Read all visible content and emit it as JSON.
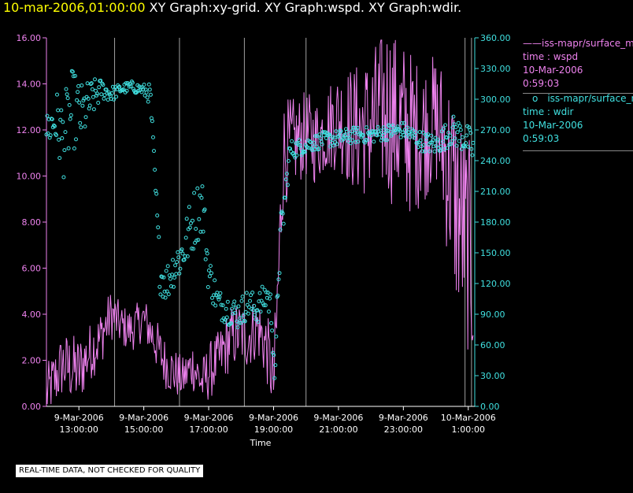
{
  "header": {
    "timestamp": "10-mar-2006,01:00:00",
    "titles": " XY Graph:xy-grid.  XY Graph:wspd.  XY Graph:wdir."
  },
  "legend": {
    "series1": {
      "name": "iss-mapr/surface_m",
      "field": "time : wspd",
      "date": "10-Mar-2006",
      "time": "0:59:03",
      "color": "#ee82ee"
    },
    "series2": {
      "name": "iss-mapr/surface_m",
      "field": "time : wdir",
      "date": "10-Mar-2006",
      "time": "0:59:03",
      "color": "#40e0e0"
    }
  },
  "footer": {
    "text": "REAL-TIME DATA, NOT CHECKED FOR QUALITY"
  },
  "chart_data": {
    "type": "line+scatter",
    "title": "XY Graph",
    "xlabel": "Time",
    "x_ticks": [
      {
        "date": "9-Mar-2006",
        "time": "13:00:00",
        "hour": 13
      },
      {
        "date": "9-Mar-2006",
        "time": "15:00:00",
        "hour": 15
      },
      {
        "date": "9-Mar-2006",
        "time": "17:00:00",
        "hour": 17
      },
      {
        "date": "9-Mar-2006",
        "time": "19:00:00",
        "hour": 19
      },
      {
        "date": "9-Mar-2006",
        "time": "21:00:00",
        "hour": 21
      },
      {
        "date": "9-Mar-2006",
        "time": "23:00:00",
        "hour": 23
      },
      {
        "date": "10-Mar-2006",
        "time": "1:00:00",
        "hour": 25
      }
    ],
    "xlim": [
      12.0,
      25.2
    ],
    "grid_x_hours": [
      12.0,
      14.1,
      16.1,
      18.1,
      20.0,
      24.9,
      25.1
    ],
    "y_left": {
      "label": "wspd",
      "ylim": [
        0,
        16
      ],
      "ticks": [
        "0.00",
        "2.00",
        "4.00",
        "6.00",
        "8.00",
        "10.00",
        "12.00",
        "14.00",
        "16.00"
      ],
      "color": "#ee82ee"
    },
    "y_right": {
      "label": "wdir",
      "ylim": [
        0,
        360
      ],
      "ticks": [
        "0.00",
        "30.00",
        "60.00",
        "90.00",
        "120.00",
        "150.00",
        "180.00",
        "210.00",
        "240.00",
        "270.00",
        "300.00",
        "330.00",
        "360.00"
      ],
      "color": "#40e0e0"
    },
    "series": [
      {
        "name": "wspd",
        "type": "line",
        "axis": "left",
        "x": [
          12.0,
          12.5,
          13.0,
          13.3,
          13.6,
          14.0,
          14.3,
          14.6,
          15.0,
          15.3,
          15.6,
          15.9,
          16.2,
          16.5,
          16.8,
          17.0,
          17.3,
          17.6,
          17.9,
          18.2,
          18.5,
          18.8,
          19.0,
          19.05,
          19.3,
          19.7,
          20.0,
          20.3,
          20.6,
          21.0,
          21.5,
          22.0,
          22.5,
          23.0,
          23.5,
          24.0,
          24.3,
          24.6,
          24.8,
          25.0,
          25.15
        ],
        "y": [
          0.5,
          1.8,
          1.5,
          2.3,
          2.8,
          4.0,
          3.5,
          3.3,
          3.8,
          3.0,
          2.0,
          1.5,
          1.2,
          1.8,
          1.0,
          1.5,
          2.0,
          2.8,
          3.2,
          3.0,
          3.5,
          2.5,
          1.0,
          2.0,
          11.0,
          11.5,
          11.8,
          11.5,
          12.0,
          12.5,
          12.0,
          12.2,
          13.0,
          12.0,
          11.8,
          12.5,
          11.0,
          9.0,
          8.0,
          7.0,
          6.0
        ],
        "amp": [
          0.8,
          0.9,
          1.0,
          0.8,
          0.8,
          0.7,
          0.6,
          0.6,
          0.6,
          0.7,
          0.7,
          0.7,
          0.6,
          0.7,
          0.7,
          0.8,
          0.8,
          0.9,
          0.9,
          0.9,
          0.9,
          1.0,
          1.0,
          1.5,
          1.5,
          1.2,
          1.2,
          1.2,
          1.2,
          1.4,
          1.8,
          2.0,
          2.5,
          2.5,
          2.0,
          1.8,
          2.5,
          3.0,
          3.0,
          3.0,
          3.0
        ]
      },
      {
        "name": "wdir",
        "type": "scatter",
        "axis": "right",
        "x": [
          12.0,
          12.3,
          12.5,
          12.8,
          13.1,
          13.4,
          13.7,
          14.0,
          14.3,
          14.6,
          14.9,
          15.2,
          15.5,
          15.7,
          15.9,
          16.2,
          16.5,
          16.8,
          17.0,
          17.3,
          17.6,
          17.9,
          18.2,
          18.5,
          18.8,
          18.95,
          19.05,
          19.15,
          19.5,
          20.0,
          20.5,
          21.0,
          21.5,
          22.0,
          22.5,
          23.0,
          23.5,
          24.0,
          24.5,
          25.0,
          25.15
        ],
        "y": [
          270,
          280,
          260,
          290,
          285,
          300,
          310,
          305,
          310,
          312,
          310,
          305,
          130,
          120,
          135,
          150,
          180,
          200,
          130,
          100,
          95,
          90,
          100,
          95,
          110,
          90,
          20,
          140,
          250,
          255,
          260,
          262,
          265,
          265,
          268,
          270,
          260,
          255,
          270,
          260,
          250
        ],
        "spread": [
          15,
          30,
          40,
          40,
          30,
          20,
          10,
          8,
          5,
          6,
          5,
          10,
          20,
          20,
          20,
          25,
          30,
          30,
          20,
          15,
          15,
          15,
          15,
          15,
          15,
          20,
          15,
          30,
          10,
          8,
          8,
          8,
          8,
          8,
          8,
          8,
          10,
          10,
          15,
          15,
          15
        ]
      }
    ]
  }
}
